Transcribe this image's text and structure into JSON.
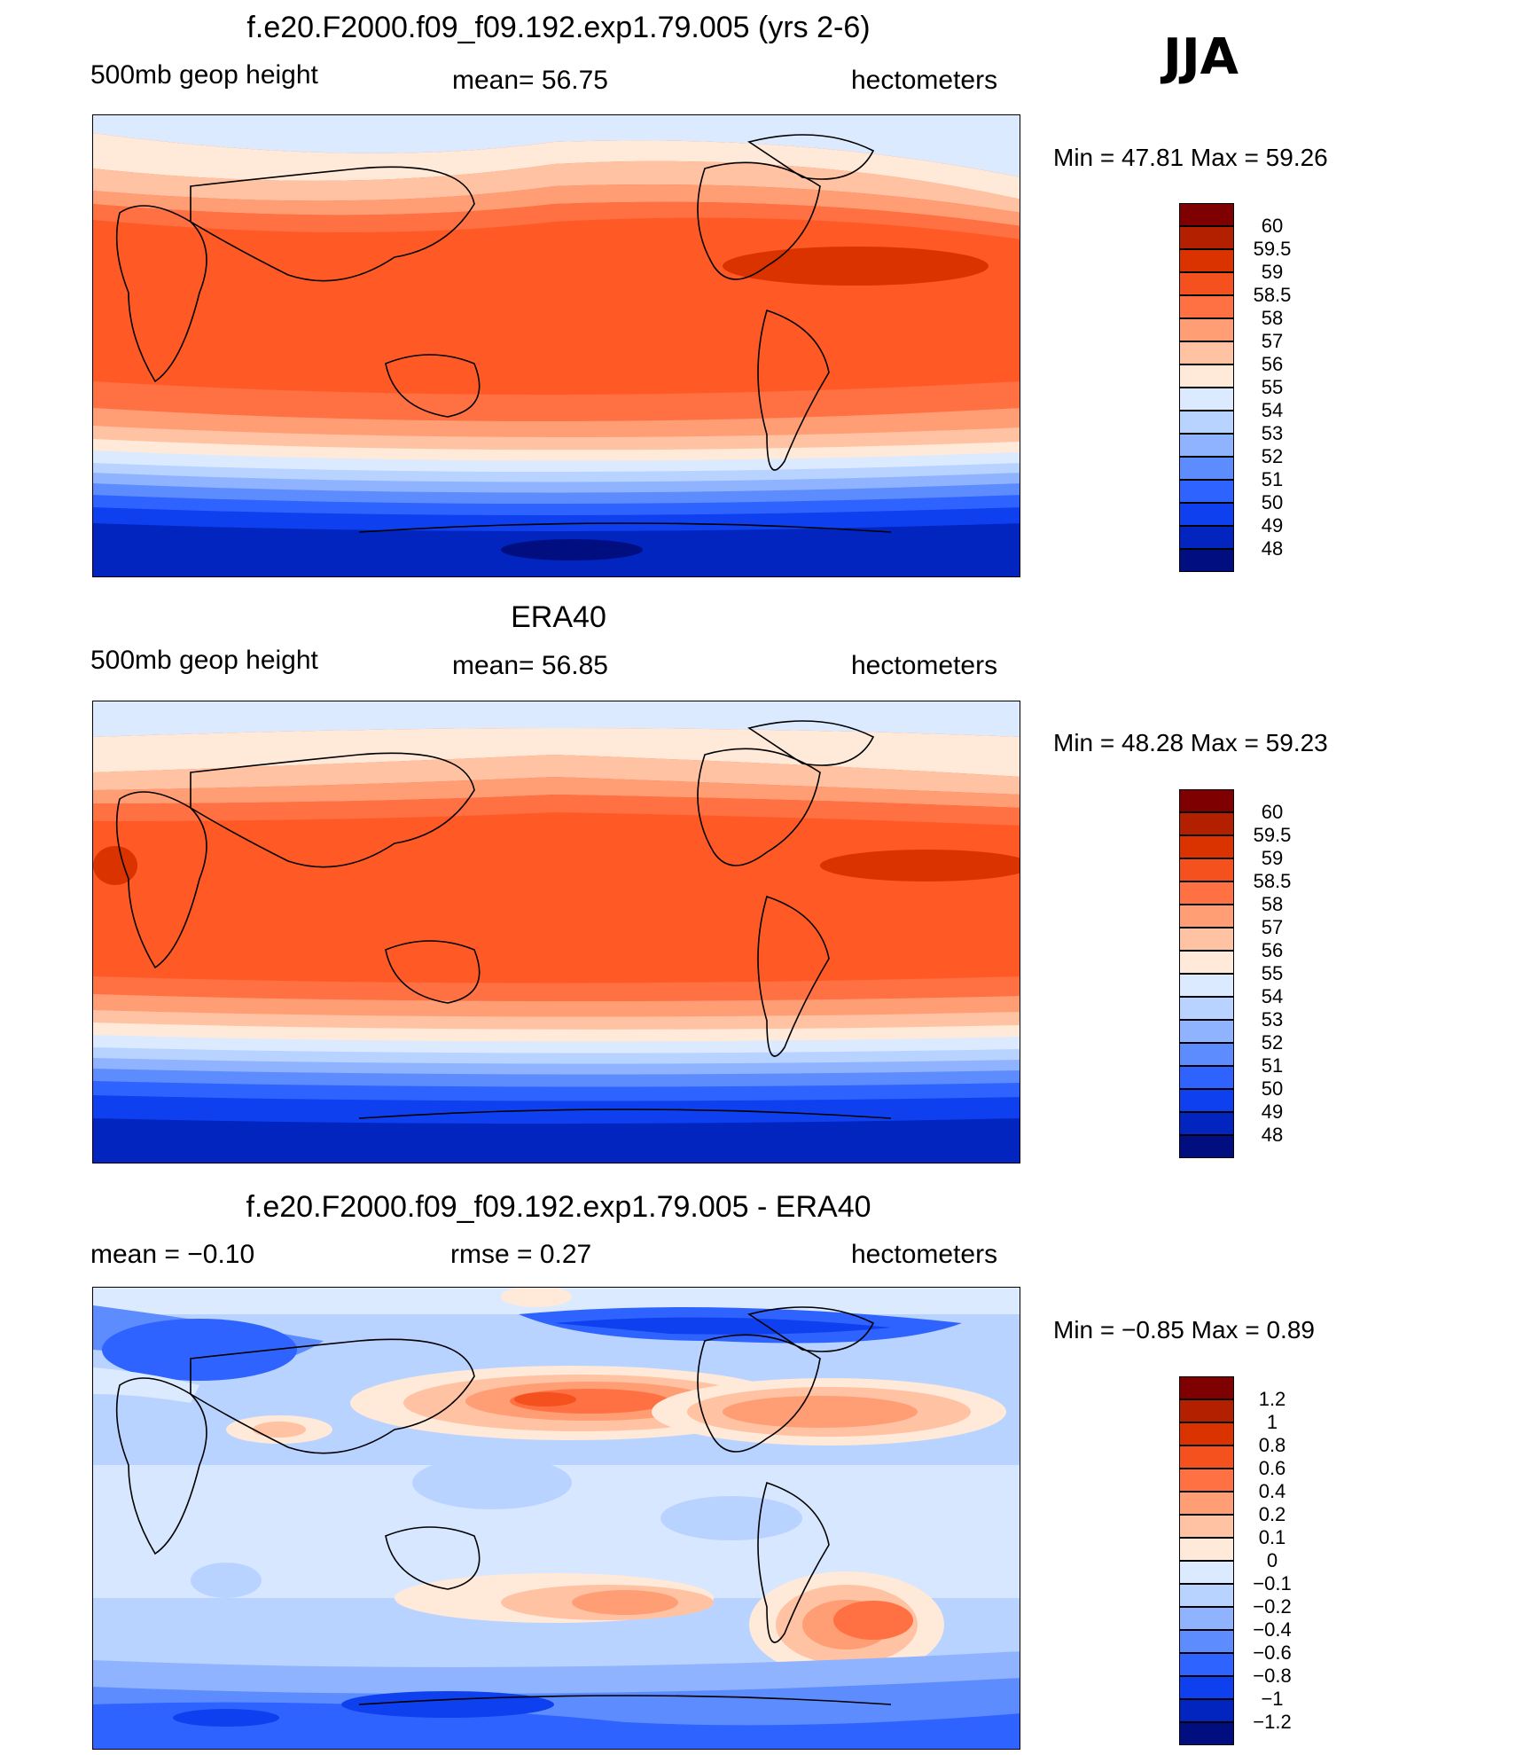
{
  "season": "JJA",
  "panels": [
    {
      "title": "f.e20.F2000.f09_f09.192.exp1.79.005 (yrs 2-6)",
      "left_label": "500mb  geop  height",
      "mid_label": "mean=   56.75",
      "right_label": "hectometers",
      "stats": "Min  =    47.81  Max  =    59.26",
      "colorbar": {
        "colors": [
          "#7f0000",
          "#b32000",
          "#db3300",
          "#f4511e",
          "#ff7043",
          "#ff9d75",
          "#ffc2a3",
          "#ffe9d8",
          "#dbeaff",
          "#b8d3ff",
          "#8fb3ff",
          "#5d8cff",
          "#2f63ff",
          "#0e40f0",
          "#0225c0",
          "#000e80"
        ],
        "labels": [
          "60",
          "59.5",
          "59",
          "58.5",
          "58",
          "57",
          "56",
          "55",
          "54",
          "53",
          "52",
          "51",
          "50",
          "49",
          "48"
        ]
      }
    },
    {
      "title": "ERA40",
      "left_label": "500mb  geop  height",
      "mid_label": "mean=   56.85",
      "right_label": "hectometers",
      "stats": "Min  =    48.28  Max  =    59.23",
      "colorbar": {
        "colors": [
          "#7f0000",
          "#b32000",
          "#db3300",
          "#f4511e",
          "#ff7043",
          "#ff9d75",
          "#ffc2a3",
          "#ffe9d8",
          "#dbeaff",
          "#b8d3ff",
          "#8fb3ff",
          "#5d8cff",
          "#2f63ff",
          "#0e40f0",
          "#0225c0",
          "#000e80"
        ],
        "labels": [
          "60",
          "59.5",
          "59",
          "58.5",
          "58",
          "57",
          "56",
          "55",
          "54",
          "53",
          "52",
          "51",
          "50",
          "49",
          "48"
        ]
      }
    },
    {
      "title": "f.e20.F2000.f09_f09.192.exp1.79.005 - ERA40",
      "left_label": "mean  =    −0.10",
      "mid_label": "rmse  =     0.27",
      "right_label": "hectometers",
      "stats": "Min  =    −0.85  Max  =      0.89",
      "colorbar": {
        "colors": [
          "#7f0000",
          "#b32000",
          "#db3300",
          "#f4511e",
          "#ff7043",
          "#ff9d75",
          "#ffc2a3",
          "#ffe9d8",
          "#dbeaff",
          "#b8d3ff",
          "#8fb3ff",
          "#5d8cff",
          "#2f63ff",
          "#0e40f0",
          "#0225c0",
          "#000e80"
        ],
        "labels": [
          "1.2",
          "1",
          "0.8",
          "0.6",
          "0.4",
          "0.2",
          "0.1",
          "0",
          "−0.1",
          "−0.2",
          "−0.4",
          "−0.6",
          "−0.8",
          "−1",
          "−1.2"
        ]
      }
    }
  ]
}
